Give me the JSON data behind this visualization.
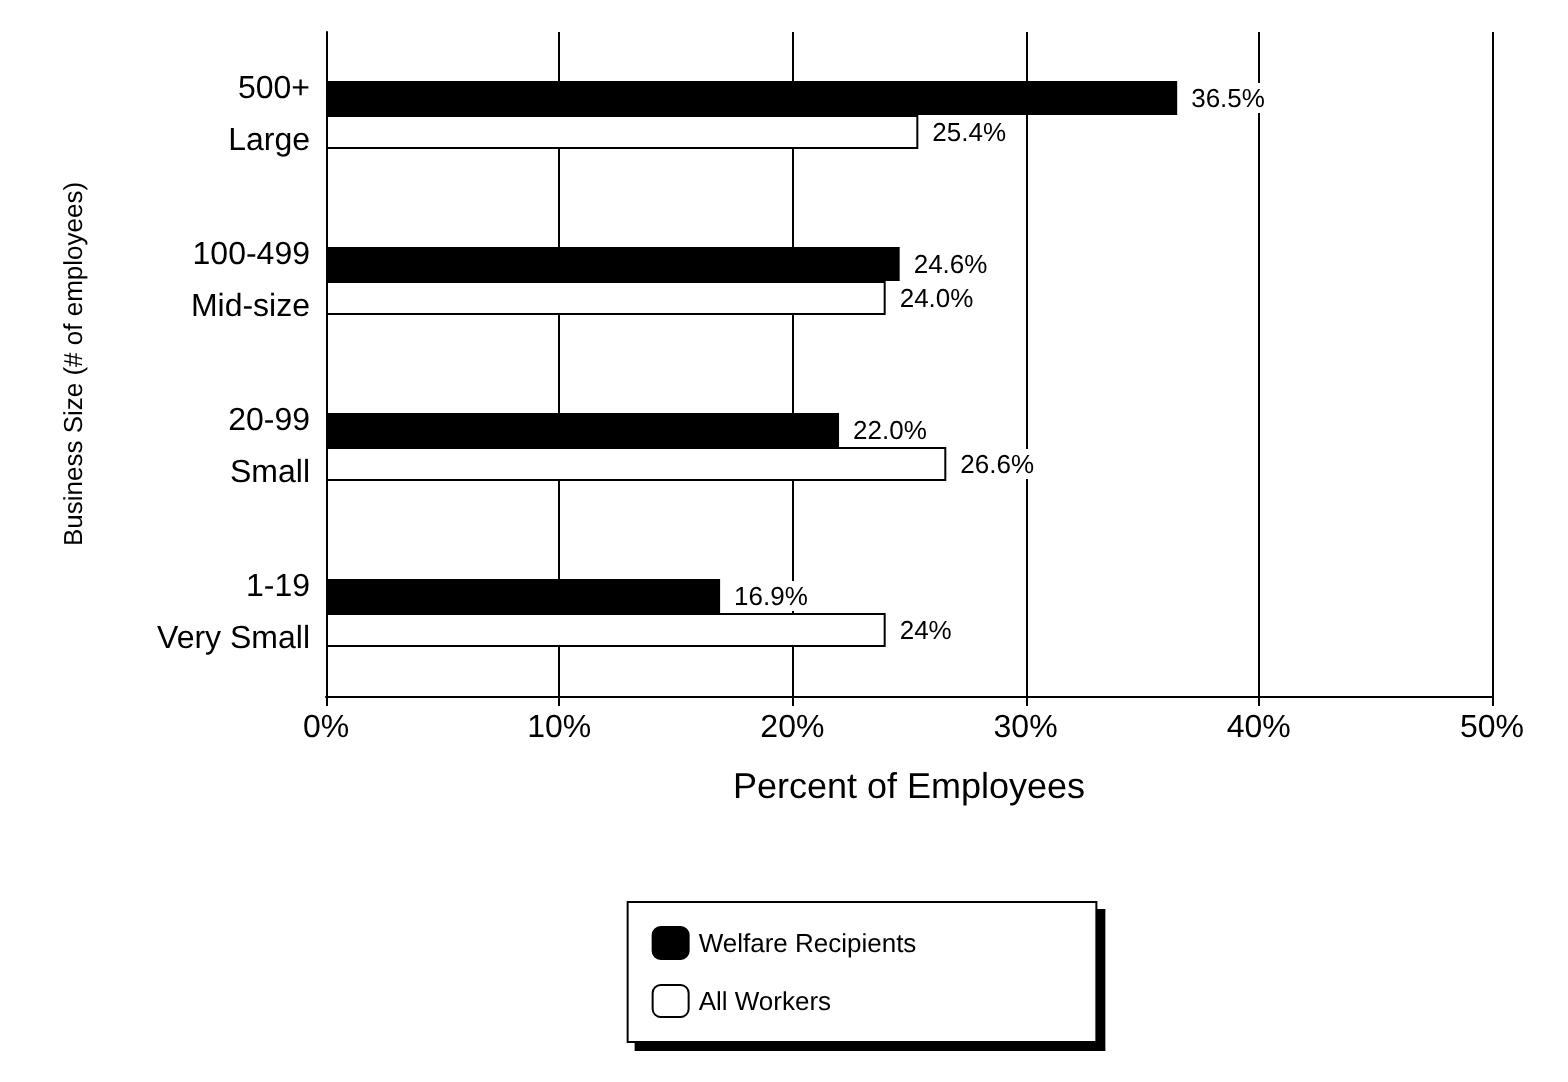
{
  "chart_data": {
    "type": "bar",
    "orientation": "horizontal",
    "xlabel": "Percent of Employees",
    "ylabel": "Business Size (# of employees)",
    "categories": [
      "500+\nLarge",
      "100-499\nMid-size",
      "20-99\nSmall",
      "1-19\nVery Small"
    ],
    "series": [
      {
        "name": "Welfare Recipients",
        "color": "#000000",
        "values": [
          36.5,
          24.6,
          22.0,
          16.9
        ],
        "value_labels": [
          "36.5%",
          "24.6%",
          "22.0%",
          "16.9%"
        ]
      },
      {
        "name": "All Workers",
        "color": "#ffffff",
        "values": [
          25.4,
          24.0,
          26.6,
          24
        ],
        "value_labels": [
          "25.4%",
          "24.0%",
          "26.6%",
          "24%"
        ]
      }
    ],
    "xlim": [
      0,
      50
    ],
    "xticks": [
      {
        "value": 0,
        "label": "0%"
      },
      {
        "value": 10,
        "label": "10%"
      },
      {
        "value": 20,
        "label": "20%"
      },
      {
        "value": 30,
        "label": "30%"
      },
      {
        "value": 40,
        "label": "40%"
      },
      {
        "value": 50,
        "label": "50%"
      }
    ],
    "grid": "x",
    "legend": "bottom"
  }
}
